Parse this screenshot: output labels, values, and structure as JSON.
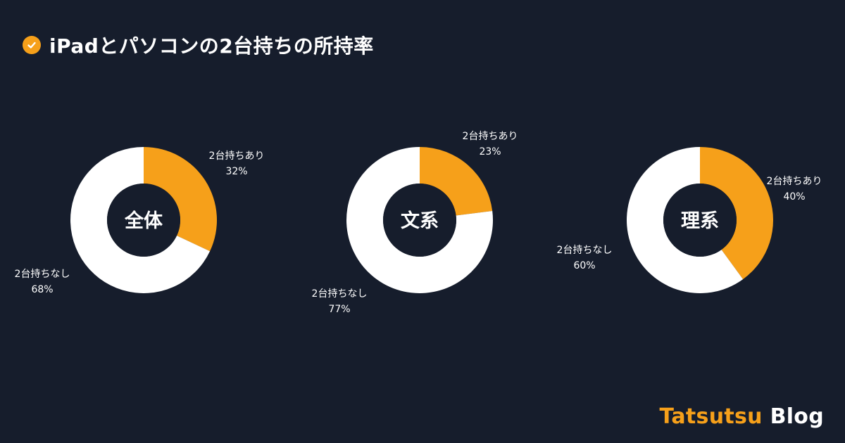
{
  "header": {
    "title": "iPadとパソコンの2台持ちの所持率",
    "icon": "check-circle-icon",
    "icon_color": "#f6a01a"
  },
  "colors": {
    "background": "#161d2c",
    "accent": "#f6a01a",
    "slice_light": "#ffffff"
  },
  "chart_data": [
    {
      "type": "pie",
      "center_label": "全体",
      "slices": [
        {
          "label": "2台持ちあり",
          "value": 32,
          "value_label": "32%"
        },
        {
          "label": "2台持ちなし",
          "value": 68,
          "value_label": "68%"
        }
      ]
    },
    {
      "type": "pie",
      "center_label": "文系",
      "slices": [
        {
          "label": "2台持ちあり",
          "value": 23,
          "value_label": "23%"
        },
        {
          "label": "2台持ちなし",
          "value": 77,
          "value_label": "77%"
        }
      ]
    },
    {
      "type": "pie",
      "center_label": "理系",
      "slices": [
        {
          "label": "2台持ちあり",
          "value": 40,
          "value_label": "40%"
        },
        {
          "label": "2台持ちなし",
          "value": 60,
          "value_label": "60%"
        }
      ]
    }
  ],
  "brand": {
    "part1": "Tatsutsu",
    "part2": "Blog"
  }
}
